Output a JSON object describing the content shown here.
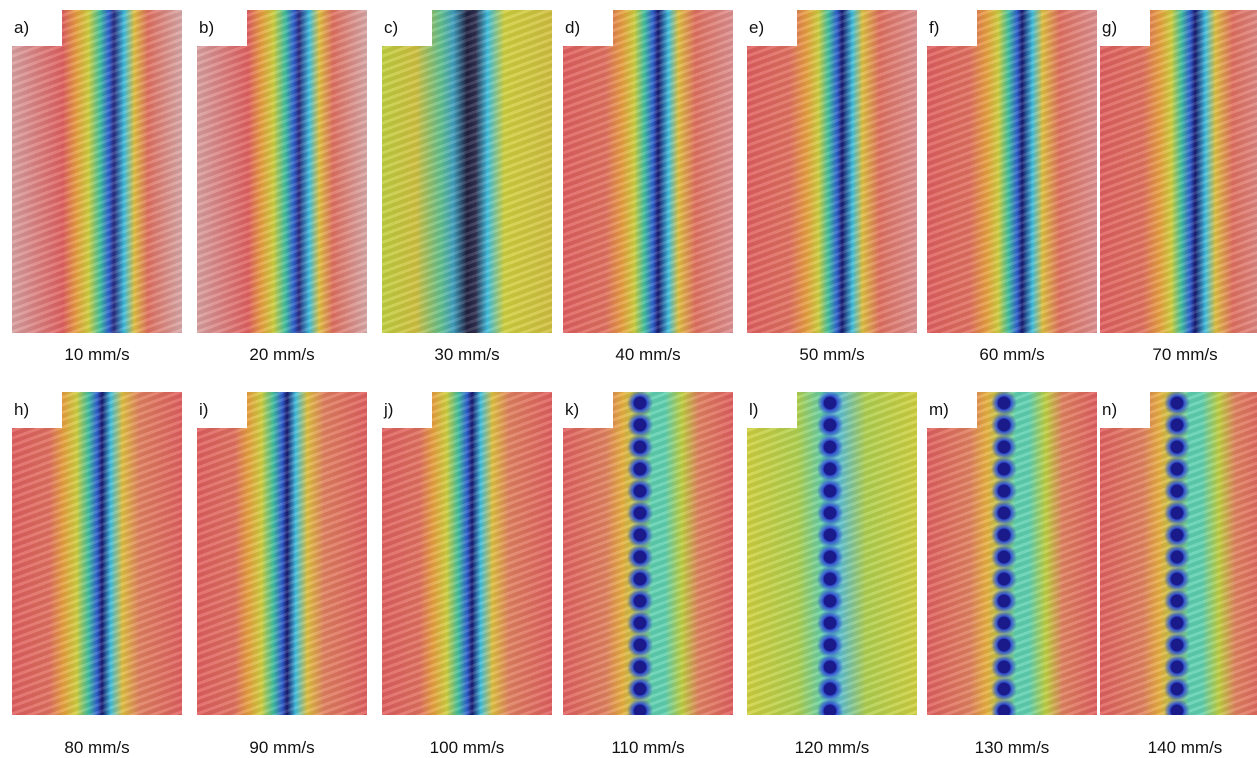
{
  "panels": [
    {
      "label": "a)",
      "caption": "10 mm/s"
    },
    {
      "label": "b)",
      "caption": "20 mm/s"
    },
    {
      "label": "c)",
      "caption": "30 mm/s"
    },
    {
      "label": "d)",
      "caption": "40 mm/s"
    },
    {
      "label": "e)",
      "caption": "50 mm/s"
    },
    {
      "label": "f)",
      "caption": "60 mm/s"
    },
    {
      "label": "g)",
      "caption": "70 mm/s"
    },
    {
      "label": "h)",
      "caption": "80 mm/s"
    },
    {
      "label": "i)",
      "caption": "90 mm/s"
    },
    {
      "label": "j)",
      "caption": "100 mm/s"
    },
    {
      "label": "k)",
      "caption": "110 mm/s"
    },
    {
      "label": "l)",
      "caption": "120 mm/s"
    },
    {
      "label": "m)",
      "caption": "130 mm/s"
    },
    {
      "label": "n)",
      "caption": "140 mm/s"
    }
  ]
}
